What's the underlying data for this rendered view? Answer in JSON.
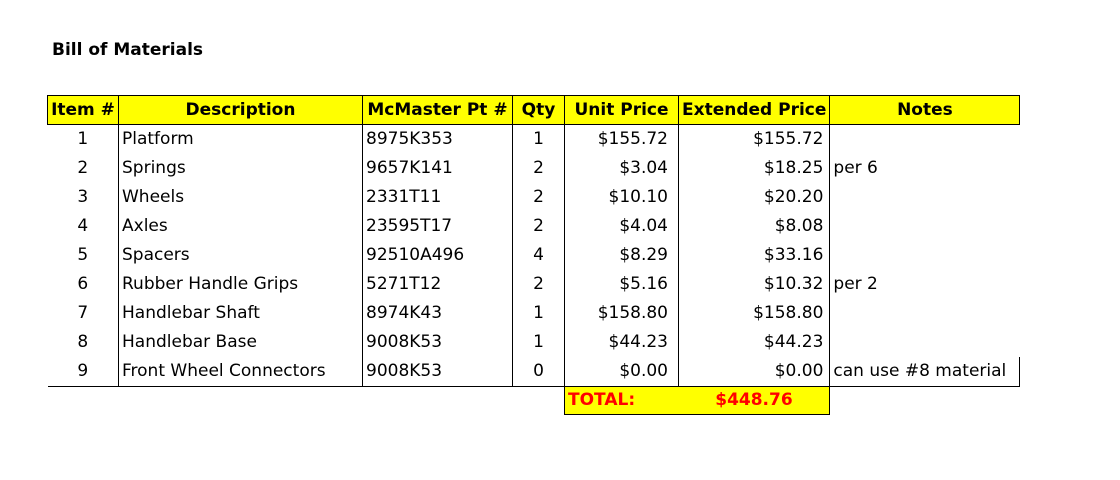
{
  "title": "Bill of Materials",
  "columns": {
    "item": "Item #",
    "description": "Description",
    "part": "McMaster Pt #",
    "qty": "Qty",
    "unit_price": "Unit Price",
    "extended_price": "Extended Price",
    "notes": "Notes"
  },
  "rows": [
    {
      "item": "1",
      "description": "Platform",
      "part": "8975K353",
      "qty": "1",
      "unit_price": "$155.72",
      "extended_price": "$155.72",
      "notes": ""
    },
    {
      "item": "2",
      "description": "Springs",
      "part": "9657K141",
      "qty": "2",
      "unit_price": "$3.04",
      "extended_price": "$18.25",
      "notes": "per 6"
    },
    {
      "item": "3",
      "description": "Wheels",
      "part": "2331T11",
      "qty": "2",
      "unit_price": "$10.10",
      "extended_price": "$20.20",
      "notes": ""
    },
    {
      "item": "4",
      "description": "Axles",
      "part": "23595T17",
      "qty": "2",
      "unit_price": "$4.04",
      "extended_price": "$8.08",
      "notes": ""
    },
    {
      "item": "5",
      "description": "Spacers",
      "part": "92510A496",
      "qty": "4",
      "unit_price": "$8.29",
      "extended_price": "$33.16",
      "notes": ""
    },
    {
      "item": "6",
      "description": "Rubber Handle Grips",
      "part": "5271T12",
      "qty": "2",
      "unit_price": "$5.16",
      "extended_price": "$10.32",
      "notes": "per 2"
    },
    {
      "item": "7",
      "description": "Handlebar Shaft",
      "part": "8974K43",
      "qty": "1",
      "unit_price": "$158.80",
      "extended_price": "$158.80",
      "notes": ""
    },
    {
      "item": "8",
      "description": "Handlebar Base",
      "part": "9008K53",
      "qty": "1",
      "unit_price": "$44.23",
      "extended_price": "$44.23",
      "notes": ""
    },
    {
      "item": "9",
      "description": "Front Wheel Connectors",
      "part": "9008K53",
      "qty": "0",
      "unit_price": "$0.00",
      "extended_price": "$0.00",
      "notes": "can use #8 material"
    }
  ],
  "total": {
    "label": "TOTAL:",
    "value": "$448.76"
  },
  "colors": {
    "header_fill": "#ffff00",
    "total_text": "#ff0000"
  }
}
